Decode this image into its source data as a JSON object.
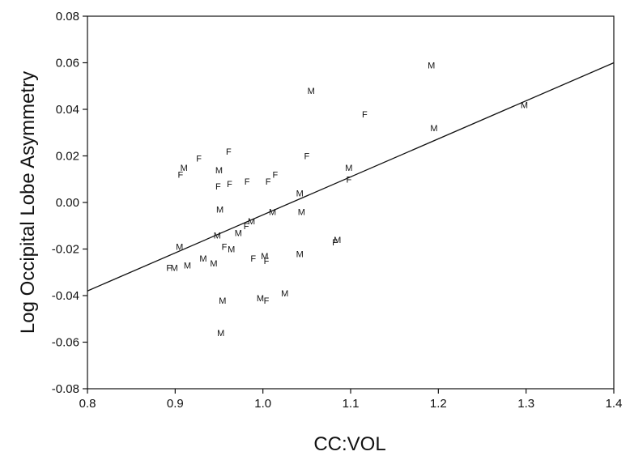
{
  "chart_data": {
    "type": "scatter",
    "xlabel": "CC:VOL",
    "ylabel": "Log Occipital Lobe Asymmetry",
    "xlim": [
      0.8,
      1.4
    ],
    "ylim": [
      -0.08,
      0.08
    ],
    "x_ticks": [
      "0.8",
      "0.9",
      "1.0",
      "1.1",
      "1.2",
      "1.3",
      "1.4"
    ],
    "y_ticks": [
      "-0.08",
      "-0.06",
      "-0.04",
      "-0.02",
      "0.00",
      "0.02",
      "0.04",
      "0.06",
      "0.08"
    ],
    "grid": false,
    "marker_labels": [
      "M",
      "F"
    ],
    "points": [
      {
        "m": "M",
        "x": 1.192,
        "y": 0.059
      },
      {
        "m": "M",
        "x": 1.298,
        "y": 0.042
      },
      {
        "m": "M",
        "x": 1.195,
        "y": 0.032
      },
      {
        "m": "M",
        "x": 1.055,
        "y": 0.048
      },
      {
        "m": "F",
        "x": 1.116,
        "y": 0.038
      },
      {
        "m": "F",
        "x": 0.927,
        "y": 0.019
      },
      {
        "m": "F",
        "x": 0.961,
        "y": 0.022
      },
      {
        "m": "F",
        "x": 1.05,
        "y": 0.02
      },
      {
        "m": "M",
        "x": 0.91,
        "y": 0.015
      },
      {
        "m": "F",
        "x": 0.906,
        "y": 0.012
      },
      {
        "m": "M",
        "x": 0.95,
        "y": 0.014
      },
      {
        "m": "M",
        "x": 1.098,
        "y": 0.015
      },
      {
        "m": "F",
        "x": 1.098,
        "y": 0.01
      },
      {
        "m": "F",
        "x": 1.014,
        "y": 0.012
      },
      {
        "m": "F",
        "x": 1.006,
        "y": 0.009
      },
      {
        "m": "F",
        "x": 0.982,
        "y": 0.009
      },
      {
        "m": "F",
        "x": 0.962,
        "y": 0.008
      },
      {
        "m": "F",
        "x": 0.949,
        "y": 0.007
      },
      {
        "m": "M",
        "x": 1.042,
        "y": 0.004
      },
      {
        "m": "M",
        "x": 0.951,
        "y": -0.003
      },
      {
        "m": "M",
        "x": 1.044,
        "y": -0.004
      },
      {
        "m": "M",
        "x": 1.011,
        "y": -0.004
      },
      {
        "m": "M",
        "x": 0.987,
        "y": -0.008
      },
      {
        "m": "F",
        "x": 0.981,
        "y": -0.01
      },
      {
        "m": "M",
        "x": 0.972,
        "y": -0.013
      },
      {
        "m": "M",
        "x": 0.948,
        "y": -0.014
      },
      {
        "m": "M",
        "x": 1.085,
        "y": -0.016
      },
      {
        "m": "F",
        "x": 1.082,
        "y": -0.017
      },
      {
        "m": "M",
        "x": 0.905,
        "y": -0.019
      },
      {
        "m": "F",
        "x": 0.956,
        "y": -0.019
      },
      {
        "m": "M",
        "x": 0.964,
        "y": -0.02
      },
      {
        "m": "M",
        "x": 1.042,
        "y": -0.022
      },
      {
        "m": "M",
        "x": 1.002,
        "y": -0.023
      },
      {
        "m": "F",
        "x": 1.004,
        "y": -0.025
      },
      {
        "m": "F",
        "x": 0.989,
        "y": -0.024
      },
      {
        "m": "M",
        "x": 0.932,
        "y": -0.024
      },
      {
        "m": "M",
        "x": 0.944,
        "y": -0.026
      },
      {
        "m": "M",
        "x": 0.914,
        "y": -0.027
      },
      {
        "m": "F",
        "x": 0.893,
        "y": -0.028
      },
      {
        "m": "M",
        "x": 0.899,
        "y": -0.028
      },
      {
        "m": "M",
        "x": 0.954,
        "y": -0.042
      },
      {
        "m": "M",
        "x": 0.997,
        "y": -0.041
      },
      {
        "m": "F",
        "x": 1.004,
        "y": -0.042
      },
      {
        "m": "M",
        "x": 1.025,
        "y": -0.039
      },
      {
        "m": "M",
        "x": 0.952,
        "y": -0.056
      }
    ],
    "regression_line": {
      "x": [
        0.8,
        1.4
      ],
      "y": [
        -0.038,
        0.06
      ]
    }
  }
}
